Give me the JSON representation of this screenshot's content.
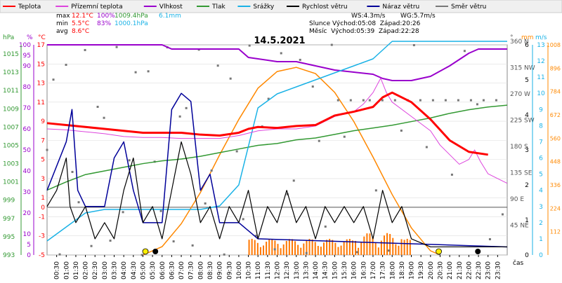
{
  "legend": [
    {
      "label": "Teplota",
      "color": "#ff0000"
    },
    {
      "label": "Přízemní teplota",
      "color": "#dd44dd"
    },
    {
      "label": "Vlhkost",
      "color": "#9900cc"
    },
    {
      "label": "Tlak",
      "color": "#339933"
    },
    {
      "label": "Srážky",
      "color": "#1ab2e6"
    },
    {
      "label": "Rychlost větru",
      "color": "#000000"
    },
    {
      "label": "Náraz větru",
      "color": "#000099"
    },
    {
      "label": "Směr větru",
      "color": "#777777"
    }
  ],
  "stats": {
    "max_label": "max",
    "max_temp": "12.1°C",
    "max_hum": "100%",
    "max_press": "1009.4hPa",
    "max_rain": "6.1mm",
    "min_label": "min",
    "min_temp": "5.5°C",
    "min_hum": "83%",
    "min_press": "1000.1hPa",
    "avg_label": "avg",
    "avg_temp": "8.6°C",
    "ws": "WS:4.3m/s",
    "wg": "WG:5.7m/s",
    "sun": "Slunce Východ:05:08  Západ:20:26",
    "moon": "Měsíc  Východ:05:39  Západ:22:28"
  },
  "units": {
    "hpa": "hPa",
    "pct": "%",
    "c": "°C",
    "deg": "°",
    "mm": "mm",
    "ms": "m/s",
    "wm2": "W/m²",
    "cas": "čas"
  },
  "colors": {
    "temp": "#ff0000",
    "ground": "#dd44dd",
    "hum": "#9900cc",
    "press": "#339933",
    "rain": "#1ab2e6",
    "wind": "#000000",
    "gust": "#000099",
    "dir": "#777777",
    "solar": "#ff8800",
    "precip_bars": "#ff7700"
  },
  "chart_data": {
    "type": "line",
    "title": "14.5.2021",
    "x_ticks": [
      "00:30",
      "01:00",
      "01:30",
      "02:00",
      "02:30",
      "03:00",
      "03:30",
      "04:00",
      "04:30",
      "05:00",
      "05:30",
      "06:00",
      "06:30",
      "07:00",
      "07:30",
      "08:00",
      "08:30",
      "09:00",
      "09:30",
      "10:00",
      "10:30",
      "11:00",
      "11:30",
      "12:00",
      "12:30",
      "13:00",
      "13:30",
      "14:00",
      "14:30",
      "15:00",
      "15:30",
      "16:00",
      "16:30",
      "17:00",
      "17:30",
      "18:00",
      "18:30",
      "19:00",
      "19:30",
      "20:00",
      "20:30",
      "21:00",
      "21:30",
      "22:00",
      "22:30",
      "23:00",
      "23:30"
    ],
    "x_range_hours": [
      0,
      24
    ],
    "axis_hpa": [
      "993",
      "995",
      "997",
      "999",
      "1001",
      "1003",
      "1005",
      "1007",
      "1009",
      "1011",
      "1013",
      "1015"
    ],
    "axis_pct": [
      "0",
      "5",
      "10",
      "15",
      "20",
      "25",
      "30",
      "35",
      "40",
      "45",
      "50",
      "55",
      "60",
      "65",
      "70",
      "75",
      "80",
      "85",
      "90",
      "95",
      "100"
    ],
    "axis_c": [
      "-5",
      "-3",
      "-1",
      "0",
      "1",
      "3",
      "5",
      "7",
      "9",
      "11",
      "13",
      "15",
      "17"
    ],
    "axis_deg": [
      "45 NE",
      "90 E",
      "135 SE",
      "180 S",
      "225 SW",
      "270 W",
      "315 NW",
      "360 N"
    ],
    "axis_mm": [
      "0",
      "1",
      "2",
      "3",
      "4",
      "5",
      "6"
    ],
    "axis_ms": [
      "0",
      "1",
      "2",
      "3",
      "4",
      "5",
      "6",
      "7",
      "8",
      "9",
      "10",
      "11",
      "12",
      "13"
    ],
    "axis_wm2": [
      "0",
      "112",
      "224",
      "336",
      "448",
      "560",
      "672",
      "784",
      "896",
      "1008"
    ],
    "series": [
      {
        "name": "Teplota",
        "unit": "°C",
        "points": [
          [
            0,
            8.8
          ],
          [
            1,
            8.6
          ],
          [
            2,
            8.4
          ],
          [
            3,
            8.2
          ],
          [
            4,
            8.0
          ],
          [
            5,
            7.8
          ],
          [
            6,
            7.8
          ],
          [
            7,
            7.8
          ],
          [
            8,
            7.6
          ],
          [
            9,
            7.5
          ],
          [
            10,
            7.8
          ],
          [
            10.5,
            8.2
          ],
          [
            11,
            8.4
          ],
          [
            12,
            8.3
          ],
          [
            13,
            8.5
          ],
          [
            14,
            8.6
          ],
          [
            15,
            9.6
          ],
          [
            16,
            10.0
          ],
          [
            17,
            10.5
          ],
          [
            17.5,
            11.5
          ],
          [
            18,
            12.0
          ],
          [
            19,
            11.0
          ],
          [
            20,
            9.2
          ],
          [
            21,
            7.0
          ],
          [
            22,
            5.8
          ],
          [
            23,
            5.5
          ]
        ]
      },
      {
        "name": "Přízemní teplota",
        "unit": "°C",
        "points": [
          [
            0,
            8.2
          ],
          [
            1,
            8.1
          ],
          [
            2,
            7.9
          ],
          [
            3,
            7.7
          ],
          [
            4,
            7.4
          ],
          [
            5,
            7.3
          ],
          [
            6,
            7.3
          ],
          [
            7,
            7.2
          ],
          [
            8,
            7.2
          ],
          [
            9,
            7.2
          ],
          [
            10,
            7.5
          ],
          [
            11,
            8.0
          ],
          [
            12,
            8.2
          ],
          [
            13,
            8.2
          ],
          [
            14,
            8.5
          ],
          [
            15,
            9.5
          ],
          [
            16,
            10.0
          ],
          [
            16.5,
            10.8
          ],
          [
            17,
            12.0
          ],
          [
            17.4,
            13.5
          ],
          [
            17.7,
            12.0
          ],
          [
            18,
            11.0
          ],
          [
            19,
            9.5
          ],
          [
            20,
            8.0
          ],
          [
            20.5,
            6.5
          ],
          [
            21,
            5.5
          ],
          [
            21.5,
            4.5
          ],
          [
            22,
            5.0
          ],
          [
            22.3,
            6.0
          ],
          [
            22.6,
            4.8
          ],
          [
            23,
            3.5
          ],
          [
            24,
            2.5
          ]
        ]
      },
      {
        "name": "Vlhkost",
        "unit": "%",
        "points": [
          [
            0,
            100
          ],
          [
            6,
            100
          ],
          [
            6.5,
            98
          ],
          [
            10,
            98
          ],
          [
            10.5,
            94
          ],
          [
            12,
            92
          ],
          [
            13,
            92
          ],
          [
            14,
            90
          ],
          [
            15,
            88
          ],
          [
            16,
            87
          ],
          [
            17,
            86
          ],
          [
            17.5,
            84
          ],
          [
            18,
            83
          ],
          [
            19,
            83
          ],
          [
            20,
            85
          ],
          [
            21,
            90
          ],
          [
            22,
            96
          ],
          [
            22.5,
            98
          ],
          [
            24,
            98
          ]
        ]
      },
      {
        "name": "Tlak",
        "unit": "hPa",
        "points": [
          [
            0,
            1000.1
          ],
          [
            1,
            1001.0
          ],
          [
            2,
            1001.8
          ],
          [
            3,
            1002.2
          ],
          [
            4,
            1002.6
          ],
          [
            5,
            1003.0
          ],
          [
            6,
            1003.3
          ],
          [
            7,
            1003.5
          ],
          [
            8,
            1003.8
          ],
          [
            9,
            1004.2
          ],
          [
            10,
            1004.6
          ],
          [
            11,
            1005.0
          ],
          [
            12,
            1005.2
          ],
          [
            13,
            1005.6
          ],
          [
            14,
            1005.8
          ],
          [
            15,
            1006.2
          ],
          [
            16,
            1006.6
          ],
          [
            17,
            1006.9
          ],
          [
            18,
            1007.2
          ],
          [
            19,
            1007.6
          ],
          [
            20,
            1008.0
          ],
          [
            21,
            1008.5
          ],
          [
            22,
            1008.9
          ],
          [
            23,
            1009.2
          ],
          [
            24,
            1009.4
          ]
        ]
      },
      {
        "name": "Srážky",
        "unit": "mm",
        "points": [
          [
            0,
            0.4
          ],
          [
            1,
            0.8
          ],
          [
            2,
            1.2
          ],
          [
            3,
            1.3
          ],
          [
            4,
            1.3
          ],
          [
            5,
            1.3
          ],
          [
            6,
            1.3
          ],
          [
            7,
            1.3
          ],
          [
            8,
            1.3
          ],
          [
            9,
            1.4
          ],
          [
            10,
            2.0
          ],
          [
            11,
            4.2
          ],
          [
            12,
            4.6
          ],
          [
            13,
            4.8
          ],
          [
            14,
            5.0
          ],
          [
            15,
            5.2
          ],
          [
            16,
            5.4
          ],
          [
            17,
            5.6
          ],
          [
            18,
            6.1
          ],
          [
            24,
            6.1
          ]
        ]
      },
      {
        "name": "Rychlost větru",
        "unit": "m/s",
        "points": [
          [
            0,
            3
          ],
          [
            0.5,
            4
          ],
          [
            1,
            6
          ],
          [
            1.2,
            3
          ],
          [
            1.5,
            2
          ],
          [
            2,
            3
          ],
          [
            2.5,
            1
          ],
          [
            3,
            2
          ],
          [
            3.5,
            1
          ],
          [
            4,
            4
          ],
          [
            4.5,
            6
          ],
          [
            5,
            2
          ],
          [
            5.5,
            3
          ],
          [
            6,
            1
          ],
          [
            6.5,
            4
          ],
          [
            7,
            7
          ],
          [
            7.5,
            5
          ],
          [
            8,
            2
          ],
          [
            8.5,
            3
          ],
          [
            9,
            1
          ],
          [
            9.5,
            3
          ],
          [
            10,
            2
          ],
          [
            10.5,
            4
          ],
          [
            11,
            1
          ],
          [
            11.5,
            3
          ],
          [
            12,
            2
          ],
          [
            12.5,
            4
          ],
          [
            13,
            2
          ],
          [
            13.5,
            3
          ],
          [
            14,
            1
          ],
          [
            14.5,
            3
          ],
          [
            15,
            2
          ],
          [
            15.5,
            3
          ],
          [
            16,
            2
          ],
          [
            16.5,
            3
          ],
          [
            17,
            1
          ],
          [
            17.5,
            4
          ],
          [
            18,
            2
          ],
          [
            18.5,
            3
          ],
          [
            19,
            1
          ],
          [
            20,
            0.5
          ],
          [
            21,
            0.5
          ],
          [
            22,
            0.5
          ],
          [
            23,
            0.5
          ],
          [
            24,
            0.5
          ]
        ]
      },
      {
        "name": "Náraz větru",
        "unit": "m/s",
        "points": [
          [
            0,
            4
          ],
          [
            1,
            7
          ],
          [
            1.3,
            9
          ],
          [
            1.6,
            4
          ],
          [
            2,
            3
          ],
          [
            3,
            3
          ],
          [
            3.5,
            6
          ],
          [
            4,
            7
          ],
          [
            4.5,
            4
          ],
          [
            5,
            2
          ],
          [
            6,
            2
          ],
          [
            6.5,
            9
          ],
          [
            7,
            10
          ],
          [
            7.5,
            9.5
          ],
          [
            8,
            4
          ],
          [
            8.5,
            5
          ],
          [
            9,
            2
          ],
          [
            10,
            2
          ],
          [
            11,
            1
          ],
          [
            24,
            0.5
          ]
        ]
      },
      {
        "name": "Sluneční záření",
        "unit": "W/m²",
        "points": [
          [
            5,
            0
          ],
          [
            6,
            40
          ],
          [
            7,
            150
          ],
          [
            8,
            300
          ],
          [
            9,
            480
          ],
          [
            10,
            650
          ],
          [
            11,
            800
          ],
          [
            12,
            880
          ],
          [
            13,
            900
          ],
          [
            14,
            870
          ],
          [
            15,
            780
          ],
          [
            16,
            640
          ],
          [
            17,
            470
          ],
          [
            18,
            290
          ],
          [
            19,
            130
          ],
          [
            20,
            20
          ],
          [
            20.5,
            0
          ]
        ]
      }
    ]
  }
}
